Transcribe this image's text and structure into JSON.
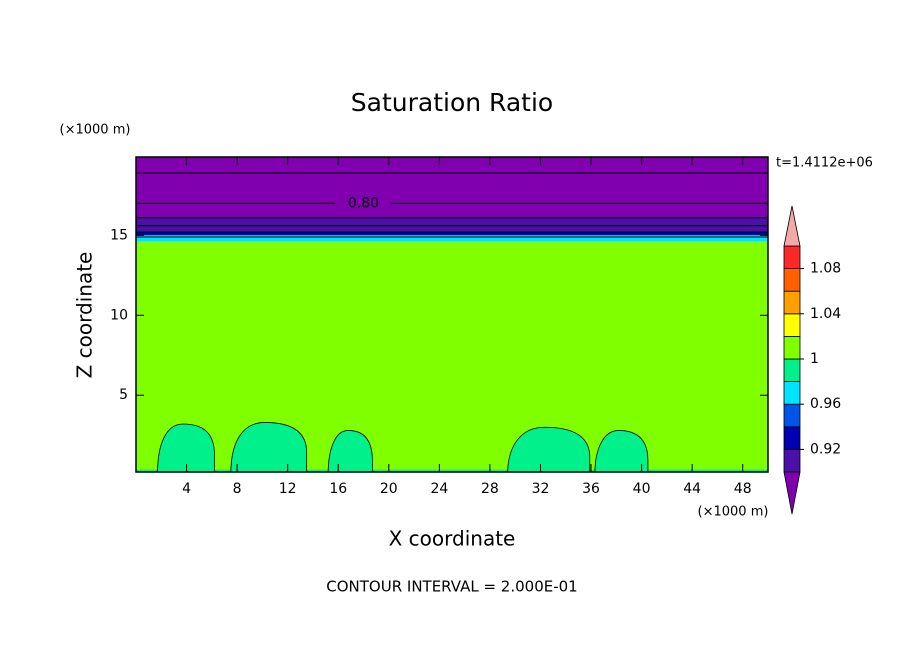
{
  "chart_data": {
    "type": "contour",
    "title": "Saturation Ratio",
    "xlabel": "X coordinate",
    "ylabel": "Z coordinate",
    "x_unit": "(×1000 m)",
    "y_unit": "(×1000 m)",
    "time_label": "t=1.4112e+06",
    "footer": "CONTOUR INTERVAL = 2.000E-01",
    "xlim": [
      0,
      50
    ],
    "ylim": [
      0.2,
      19.9
    ],
    "xticks": [
      4,
      8,
      12,
      16,
      20,
      24,
      28,
      32,
      36,
      40,
      44,
      48
    ],
    "yticks": [
      5,
      10,
      15
    ],
    "bands": [
      {
        "value": 0.8,
        "zmin": 16.1,
        "zmax": 19.9
      },
      {
        "value": 0.91,
        "zmin": 15.2,
        "zmax": 16.1
      },
      {
        "value": 0.93,
        "zmin": 15.0,
        "zmax": 15.2
      },
      {
        "value": 0.97,
        "zmin": 14.6,
        "zmax": 15.0
      },
      {
        "value": 1.01,
        "zmin": 0.2,
        "zmax": 14.6
      },
      {
        "value": 0.99,
        "zmin": 0.2,
        "zmax": 0.35
      }
    ],
    "cell_value": 0.99,
    "cells": [
      {
        "x0": 1.7,
        "x1": 6.2,
        "top": 3.2
      },
      {
        "x0": 7.5,
        "x1": 13.5,
        "top": 3.3
      },
      {
        "x0": 15.2,
        "x1": 18.7,
        "top": 2.8
      },
      {
        "x0": 29.4,
        "x1": 35.9,
        "top": 3.0
      },
      {
        "x0": 36.3,
        "x1": 40.5,
        "top": 2.8
      }
    ],
    "contour_lines": {
      "z": [
        18.9,
        17.0,
        16.1,
        15.6,
        15.2,
        14.9
      ],
      "labels": [
        null,
        "0.80",
        null,
        null,
        null,
        null
      ]
    },
    "colorbar": {
      "levels": [
        0.9,
        0.92,
        0.94,
        0.96,
        0.98,
        1.0,
        1.02,
        1.04,
        1.06,
        1.08,
        1.1
      ],
      "colors": [
        "#4a10a8",
        "#0000b0",
        "#0055e8",
        "#00e4ff",
        "#00f08c",
        "#80ff00",
        "#ffff00",
        "#ffa000",
        "#ff6000",
        "#ff2828"
      ],
      "under": "#8000b0",
      "over": "#f4a8a8",
      "ticks": [
        0.92,
        0.96,
        1,
        1.04,
        1.08
      ]
    }
  }
}
